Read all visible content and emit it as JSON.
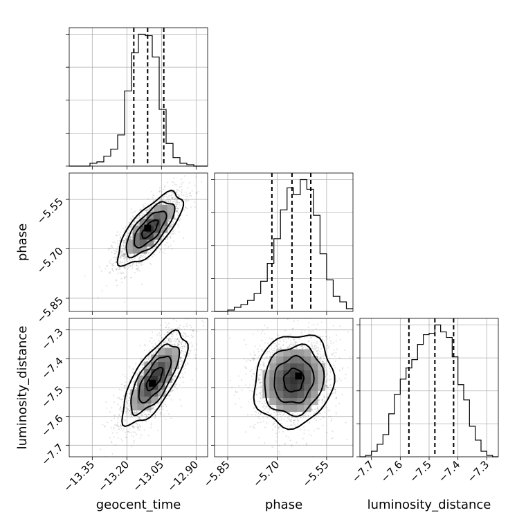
{
  "chart_data": {
    "type": "corner",
    "parameters": [
      "geocent_time",
      "phase",
      "luminosity_distance"
    ],
    "ranges": {
      "geocent_time": [
        -13.45,
        -12.85
      ],
      "phase": [
        -5.89,
        -5.47
      ],
      "luminosity_distance": [
        -7.74,
        -7.26
      ]
    },
    "ticks": {
      "geocent_time": {
        "values": [
          -13.35,
          -13.2,
          -13.05,
          -12.9
        ],
        "labels": [
          "−13.35",
          "−13.20",
          "−13.05",
          "−12.90"
        ]
      },
      "phase": {
        "values": [
          -5.85,
          -5.7,
          -5.55
        ],
        "labels": [
          "−5.85",
          "−5.70",
          "−5.55"
        ]
      },
      "luminosity_distance": {
        "values": [
          -7.7,
          -7.6,
          -7.5,
          -7.4,
          -7.3
        ],
        "labels": [
          "−7.7",
          "−7.6",
          "−7.5",
          "−7.4",
          "−7.3"
        ]
      }
    },
    "grid": true,
    "histograms": [
      {
        "parameter": "geocent_time",
        "bin_edges": [
          -13.45,
          -13.42,
          -13.39,
          -13.36,
          -13.33,
          -13.3,
          -13.27,
          -13.24,
          -13.21,
          -13.18,
          -13.15,
          -13.12,
          -13.09,
          -13.06,
          -13.03,
          -13.0,
          -12.97,
          -12.94,
          -12.91,
          -12.88,
          -12.85
        ],
        "counts": [
          0,
          0,
          0,
          2,
          3,
          7,
          12,
          22,
          53,
          80,
          93,
          92,
          77,
          40,
          16,
          6,
          2,
          1,
          0,
          0
        ],
        "quantiles": [
          -13.17,
          -13.11,
          -13.04
        ]
      },
      {
        "parameter": "phase",
        "bin_edges": [
          -5.89,
          -5.87,
          -5.85,
          -5.83,
          -5.81,
          -5.79,
          -5.77,
          -5.75,
          -5.73,
          -5.71,
          -5.69,
          -5.67,
          -5.65,
          -5.63,
          -5.61,
          -5.59,
          -5.57,
          -5.55,
          -5.53,
          -5.51,
          -5.49,
          -5.47
        ],
        "counts": [
          0,
          0,
          1,
          3,
          5,
          8,
          13,
          22,
          35,
          53,
          74,
          90,
          85,
          96,
          89,
          70,
          42,
          23,
          11,
          7,
          2
        ],
        "quantiles": [
          -5.716,
          -5.655,
          -5.598
        ]
      },
      {
        "parameter": "luminosity_distance",
        "bin_edges": [
          -7.74,
          -7.72,
          -7.7,
          -7.68,
          -7.66,
          -7.64,
          -7.62,
          -7.6,
          -7.58,
          -7.56,
          -7.54,
          -7.52,
          -7.5,
          -7.48,
          -7.46,
          -7.44,
          -7.42,
          -7.4,
          -7.38,
          -7.36,
          -7.34,
          -7.32,
          -7.3,
          -7.28,
          -7.26
        ],
        "counts": [
          0,
          1,
          4,
          9,
          16,
          31,
          45,
          56,
          64,
          70,
          81,
          88,
          89,
          95,
          90,
          86,
          72,
          52,
          41,
          22,
          12,
          4,
          1,
          0
        ],
        "quantiles": [
          -7.57,
          -7.48,
          -7.415
        ]
      }
    ],
    "joint_2d": [
      {
        "x": "geocent_time",
        "y": "phase",
        "mean": [
          -13.1,
          -5.64
        ],
        "std": [
          0.07,
          0.055
        ],
        "corr": 0.72,
        "peak": [
          -13.11,
          -5.637
        ],
        "contour_sigmas": [
          0.5,
          1.0,
          1.5,
          2.0
        ]
      },
      {
        "x": "geocent_time",
        "y": "luminosity_distance",
        "mean": [
          -13.08,
          -7.47
        ],
        "std": [
          0.07,
          0.08
        ],
        "corr": 0.72,
        "peak": [
          -13.09,
          -7.485
        ],
        "contour_sigmas": [
          0.5,
          1.0,
          1.5,
          2.0
        ]
      },
      {
        "x": "phase",
        "y": "luminosity_distance",
        "mean": [
          -5.65,
          -7.475
        ],
        "std": [
          0.06,
          0.08
        ],
        "corr": 0.1,
        "peak": [
          -5.635,
          -7.46
        ],
        "contour_sigmas": [
          0.5,
          1.0,
          1.5,
          2.0
        ]
      }
    ]
  },
  "labels": {
    "x0": "geocent_time",
    "x1": "phase",
    "x2": "luminosity_distance",
    "y1": "phase",
    "y2": "luminosity_distance"
  }
}
